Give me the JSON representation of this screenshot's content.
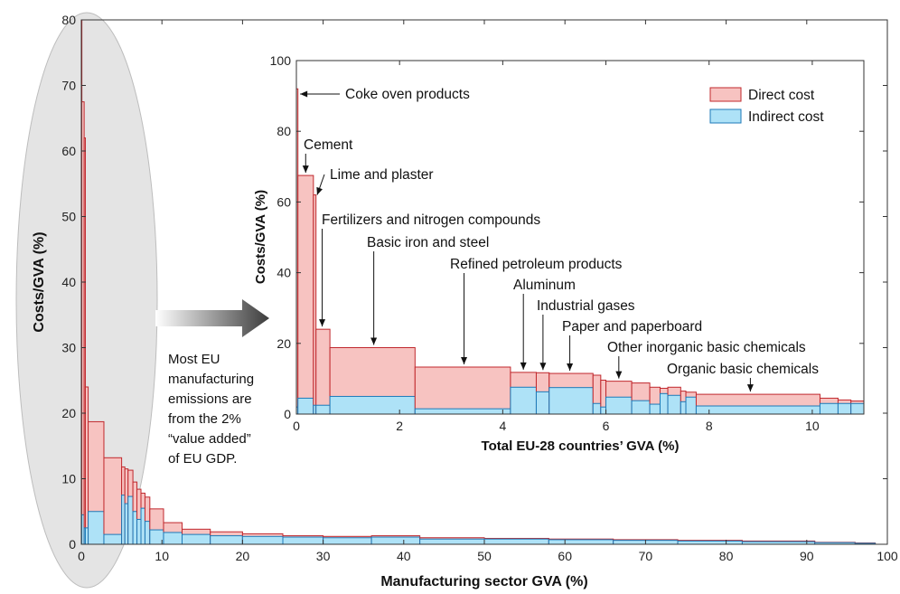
{
  "chart_data": [
    {
      "type": "bar",
      "xlabel": "Manufacturing sector GVA (%)",
      "ylabel": "Costs/GVA (%)",
      "xlim": [
        0,
        100
      ],
      "ylim": [
        0,
        80
      ],
      "xticks": [
        "0",
        "10",
        "20",
        "30",
        "40",
        "50",
        "60",
        "70",
        "80",
        "90",
        "100"
      ],
      "yticks": [
        "0",
        "10",
        "20",
        "30",
        "40",
        "50",
        "60",
        "70",
        "80"
      ],
      "colors": {
        "direct": "#f7c3c1",
        "direct_edge": "#c0282d",
        "indirect": "#aee2f7",
        "indirect_edge": "#1d7ab8"
      },
      "segments": [
        {
          "x0": 0.0,
          "x1": 0.05,
          "total": 92.0,
          "indirect": 2.0
        },
        {
          "x0": 0.05,
          "x1": 0.35,
          "total": 67.5,
          "indirect": 4.5
        },
        {
          "x0": 0.35,
          "x1": 0.5,
          "total": 62.0,
          "indirect": 2.5
        },
        {
          "x0": 0.5,
          "x1": 0.85,
          "total": 24.0,
          "indirect": 2.5
        },
        {
          "x0": 0.85,
          "x1": 2.8,
          "total": 18.7,
          "indirect": 5.0
        },
        {
          "x0": 2.8,
          "x1": 5.0,
          "total": 13.2,
          "indirect": 1.5
        },
        {
          "x0": 5.0,
          "x1": 5.4,
          "total": 11.8,
          "indirect": 7.5
        },
        {
          "x0": 5.4,
          "x1": 5.8,
          "total": 11.5,
          "indirect": 6.2
        },
        {
          "x0": 5.8,
          "x1": 6.4,
          "total": 11.3,
          "indirect": 7.3
        },
        {
          "x0": 6.4,
          "x1": 6.9,
          "total": 9.5,
          "indirect": 5.0
        },
        {
          "x0": 6.9,
          "x1": 7.4,
          "total": 8.4,
          "indirect": 3.8
        },
        {
          "x0": 7.4,
          "x1": 7.9,
          "total": 7.8,
          "indirect": 5.5
        },
        {
          "x0": 7.9,
          "x1": 8.5,
          "total": 7.2,
          "indirect": 3.5
        },
        {
          "x0": 8.5,
          "x1": 10.2,
          "total": 5.4,
          "indirect": 2.2
        },
        {
          "x0": 10.2,
          "x1": 12.5,
          "total": 3.3,
          "indirect": 1.8
        },
        {
          "x0": 12.5,
          "x1": 16.0,
          "total": 2.3,
          "indirect": 1.5
        },
        {
          "x0": 16.0,
          "x1": 20.0,
          "total": 1.9,
          "indirect": 1.3
        },
        {
          "x0": 20.0,
          "x1": 25.0,
          "total": 1.6,
          "indirect": 1.2
        },
        {
          "x0": 25.0,
          "x1": 30.0,
          "total": 1.3,
          "indirect": 1.1
        },
        {
          "x0": 30.0,
          "x1": 36.0,
          "total": 1.2,
          "indirect": 1.0
        },
        {
          "x0": 36.0,
          "x1": 42.0,
          "total": 1.3,
          "indirect": 1.1
        },
        {
          "x0": 42.0,
          "x1": 50.0,
          "total": 1.0,
          "indirect": 0.8
        },
        {
          "x0": 50.0,
          "x1": 58.0,
          "total": 0.9,
          "indirect": 0.8
        },
        {
          "x0": 58.0,
          "x1": 66.0,
          "total": 0.8,
          "indirect": 0.7
        },
        {
          "x0": 66.0,
          "x1": 74.0,
          "total": 0.7,
          "indirect": 0.6
        },
        {
          "x0": 74.0,
          "x1": 82.0,
          "total": 0.6,
          "indirect": 0.5
        },
        {
          "x0": 82.0,
          "x1": 91.0,
          "total": 0.5,
          "indirect": 0.4
        },
        {
          "x0": 91.0,
          "x1": 96.0,
          "total": 0.3,
          "indirect": 0.25
        },
        {
          "x0": 96.0,
          "x1": 98.5,
          "total": 0.2,
          "indirect": 0.15
        }
      ],
      "annotation": "Most EU manufacturing emissions are from the 2% “value added” of EU GDP."
    },
    {
      "type": "bar",
      "xlabel": "Total EU-28 countries’ GVA (%)",
      "ylabel": "Costs/GVA (%)",
      "xlim": [
        0,
        11
      ],
      "ylim": [
        0,
        100
      ],
      "xticks": [
        "0",
        "2",
        "4",
        "6",
        "8",
        "10"
      ],
      "yticks": [
        "0",
        "20",
        "40",
        "60",
        "80",
        "100"
      ],
      "legend": {
        "position": "top-right",
        "entries": [
          "Direct cost",
          "Indirect cost"
        ]
      },
      "segments": [
        {
          "x0": 0.0,
          "x1": 0.03,
          "total": 92.0,
          "indirect": 2.0
        },
        {
          "x0": 0.03,
          "x1": 0.33,
          "total": 67.5,
          "indirect": 4.5
        },
        {
          "x0": 0.33,
          "x1": 0.38,
          "total": 62.0,
          "indirect": 2.5
        },
        {
          "x0": 0.38,
          "x1": 0.65,
          "total": 24.0,
          "indirect": 2.5
        },
        {
          "x0": 0.65,
          "x1": 2.3,
          "total": 18.8,
          "indirect": 5.0
        },
        {
          "x0": 2.3,
          "x1": 4.15,
          "total": 13.3,
          "indirect": 1.5
        },
        {
          "x0": 4.15,
          "x1": 4.65,
          "total": 11.8,
          "indirect": 7.6
        },
        {
          "x0": 4.65,
          "x1": 4.9,
          "total": 11.7,
          "indirect": 6.3
        },
        {
          "x0": 4.9,
          "x1": 5.75,
          "total": 11.5,
          "indirect": 7.5
        },
        {
          "x0": 5.75,
          "x1": 5.9,
          "total": 11.0,
          "indirect": 3.0
        },
        {
          "x0": 5.9,
          "x1": 6.0,
          "total": 9.6,
          "indirect": 2.0
        },
        {
          "x0": 6.0,
          "x1": 6.5,
          "total": 9.3,
          "indirect": 4.8
        },
        {
          "x0": 6.5,
          "x1": 6.85,
          "total": 8.8,
          "indirect": 3.8
        },
        {
          "x0": 6.85,
          "x1": 7.05,
          "total": 7.6,
          "indirect": 2.8
        },
        {
          "x0": 7.05,
          "x1": 7.2,
          "total": 7.3,
          "indirect": 5.8
        },
        {
          "x0": 7.2,
          "x1": 7.45,
          "total": 7.6,
          "indirect": 5.3
        },
        {
          "x0": 7.45,
          "x1": 7.55,
          "total": 6.5,
          "indirect": 3.5
        },
        {
          "x0": 7.55,
          "x1": 7.75,
          "total": 6.2,
          "indirect": 4.8
        },
        {
          "x0": 7.75,
          "x1": 10.15,
          "total": 5.6,
          "indirect": 2.3
        },
        {
          "x0": 10.15,
          "x1": 10.5,
          "total": 4.5,
          "indirect": 3.0
        },
        {
          "x0": 10.5,
          "x1": 10.75,
          "total": 4.0,
          "indirect": 3.0
        },
        {
          "x0": 10.75,
          "x1": 11.0,
          "total": 3.7,
          "indirect": 3.0
        }
      ],
      "annotations": [
        {
          "label": "Coke oven products",
          "x": 0.02,
          "y": 92
        },
        {
          "label": "Cement",
          "x": 0.18,
          "y": 67.5
        },
        {
          "label": "Lime and plaster",
          "x": 0.35,
          "y": 62
        },
        {
          "label": "Fertilizers and nitrogen compounds",
          "x": 0.5,
          "y": 24
        },
        {
          "label": "Basic iron and steel",
          "x": 1.5,
          "y": 18.8
        },
        {
          "label": "Refined petroleum products",
          "x": 3.25,
          "y": 13.3
        },
        {
          "label": "Aluminum",
          "x": 4.4,
          "y": 11.8
        },
        {
          "label": "Industrial gases",
          "x": 4.78,
          "y": 11.7
        },
        {
          "label": "Paper and paperboard",
          "x": 5.3,
          "y": 11.5
        },
        {
          "label": "Other inorganic basic chemicals",
          "x": 6.25,
          "y": 9.3
        },
        {
          "label": "Organic basic chemicals",
          "x": 8.8,
          "y": 5.6
        }
      ]
    }
  ]
}
